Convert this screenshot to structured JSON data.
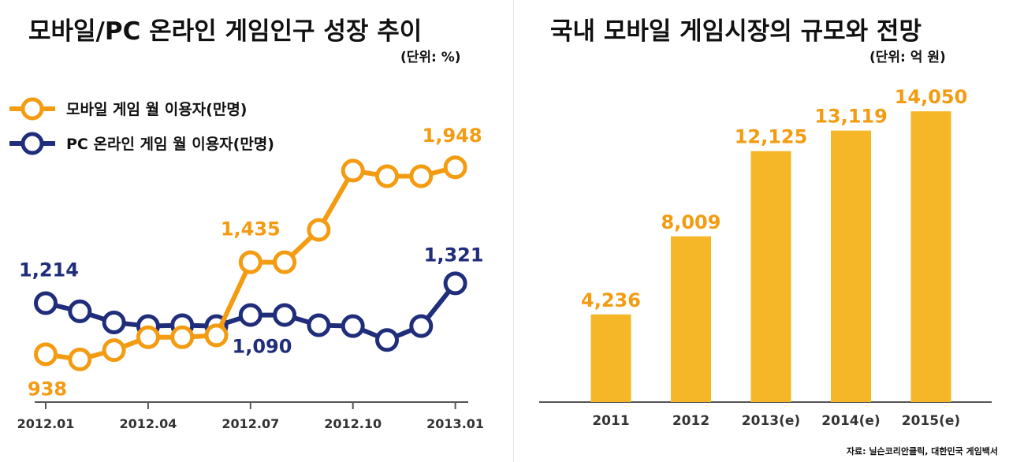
{
  "left": {
    "title": "모바일/PC 온라인 게임인구 성장 추이",
    "unit": "(단위: %)"
  },
  "right": {
    "title": "국내 모바일 게임시장의 규모와 전망",
    "unit": "(단위: 억 원)"
  },
  "source": "자료: 닐슨코리안클릭, 대한민국 게임백서",
  "colors": {
    "mobile": "#F39C12",
    "pc": "#1F2D7A",
    "bar": "#F5B728",
    "axis": "#555555",
    "tick_text": "#333333"
  },
  "chart_data": [
    {
      "type": "line",
      "title": "모바일/PC 온라인 게임인구 성장 추이",
      "x": [
        "2012.01",
        "2012.02",
        "2012.03",
        "2012.04",
        "2012.05",
        "2012.06",
        "2012.07",
        "2012.08",
        "2012.09",
        "2012.10",
        "2012.11",
        "2012.12",
        "2013.01"
      ],
      "x_tick_labels": [
        "2012.01",
        "2012.04",
        "2012.07",
        "2012.10",
        "2013.01"
      ],
      "series": [
        {
          "name": "모바일 게임 월 이용자(만명)",
          "color": "#F39C12",
          "values": [
            938,
            910,
            960,
            1030,
            1030,
            1040,
            1435,
            1435,
            1610,
            1930,
            1900,
            1900,
            1948
          ],
          "data_labels": [
            {
              "index": 0,
              "text": "938"
            },
            {
              "index": 6,
              "text": "1,435"
            },
            {
              "index": 12,
              "text": "1,948"
            }
          ]
        },
        {
          "name": "PC 온라인 게임 월 이용자(만명)",
          "color": "#1F2D7A",
          "values": [
            1214,
            1170,
            1110,
            1090,
            1095,
            1090,
            1150,
            1150,
            1095,
            1090,
            1015,
            1090,
            1321
          ],
          "data_labels": [
            {
              "index": 0,
              "text": "1,214"
            },
            {
              "index": 5,
              "text": "1,090"
            },
            {
              "index": 12,
              "text": "1,321"
            }
          ]
        }
      ],
      "legend": "top-left"
    },
    {
      "type": "bar",
      "title": "국내 모바일 게임시장의 규모와 전망",
      "categories": [
        "2011",
        "2012",
        "2013(e)",
        "2014(e)",
        "2015(e)"
      ],
      "values": [
        4236,
        8009,
        12125,
        13119,
        14050
      ],
      "value_labels": [
        "4,236",
        "8,009",
        "12,125",
        "13,119",
        "14,050"
      ],
      "ylim": [
        0,
        16000
      ]
    }
  ]
}
